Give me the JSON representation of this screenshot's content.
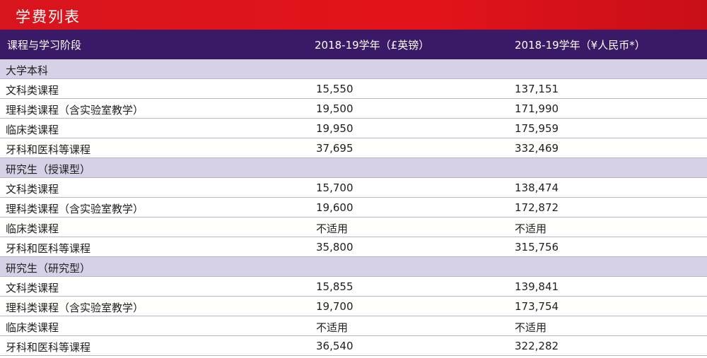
{
  "title": "学费列表",
  "header": {
    "col_course": "课程与学习阶段",
    "col_gbp": "2018-19学年（£英镑）",
    "col_cny": "2018-19学年（¥人民币*）"
  },
  "sections": [
    {
      "label": "大学本科",
      "rows": [
        {
          "course": "文科类课程",
          "gbp": "15,550",
          "cny": "137,151"
        },
        {
          "course": "理科类课程（含实验室教学）",
          "gbp": "19,500",
          "cny": "171,990"
        },
        {
          "course": "临床类课程",
          "gbp": "19,950",
          "cny": "175,959"
        },
        {
          "course": "牙科和医科等课程",
          "gbp": "37,695",
          "cny": "332,469"
        }
      ]
    },
    {
      "label": "研究生（授课型）",
      "rows": [
        {
          "course": "文科类课程",
          "gbp": "15,700",
          "cny": "138,474"
        },
        {
          "course": "理科类课程（含实验室教学）",
          "gbp": "19,600",
          "cny": "172,872"
        },
        {
          "course": "临床类课程",
          "gbp": "不适用",
          "cny": "不适用"
        },
        {
          "course": "牙科和医科等课程",
          "gbp": "35,800",
          "cny": "315,756"
        }
      ]
    },
    {
      "label": "研究生（研究型）",
      "rows": [
        {
          "course": "文科类课程",
          "gbp": "15,855",
          "cny": "139,841"
        },
        {
          "course": "理科类课程（含实验室教学）",
          "gbp": "19,700",
          "cny": "173,754"
        },
        {
          "course": "临床类课程",
          "gbp": "不适用",
          "cny": "不适用"
        },
        {
          "course": "牙科和医科等课程",
          "gbp": "36,540",
          "cny": "322,282"
        }
      ]
    }
  ]
}
